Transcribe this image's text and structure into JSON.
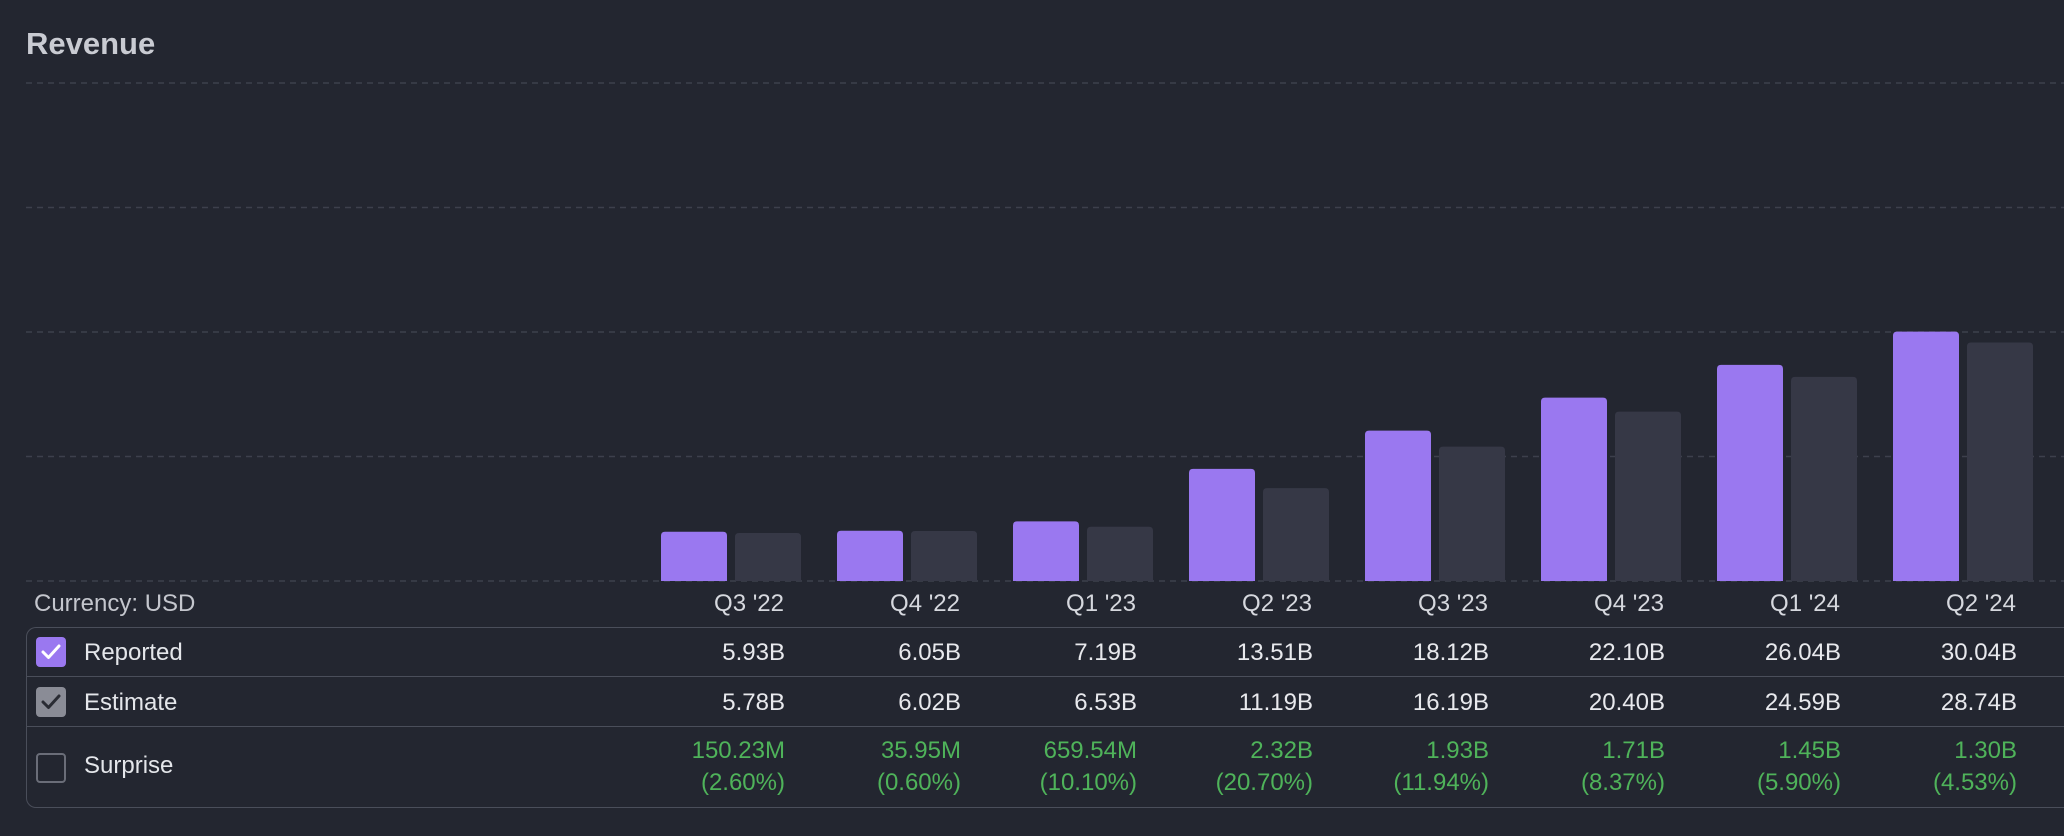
{
  "title": "Revenue",
  "currency_label": "Currency: USD",
  "colors": {
    "reported": "#9a78f0",
    "estimate": "#363846",
    "surprise_text": "#4fb35a"
  },
  "rows": {
    "reported_label": "Reported",
    "estimate_label": "Estimate",
    "surprise_label": "Surprise",
    "reported_checked": true,
    "estimate_checked": true,
    "surprise_checked": false
  },
  "table": {
    "quarters": [
      "Q3 '22",
      "Q4 '22",
      "Q1 '23",
      "Q2 '23",
      "Q3 '23",
      "Q4 '23",
      "Q1 '24",
      "Q2 '24"
    ],
    "reported": [
      "5.93B",
      "6.05B",
      "7.19B",
      "13.51B",
      "18.12B",
      "22.10B",
      "26.04B",
      "30.04B"
    ],
    "estimate": [
      "5.78B",
      "6.02B",
      "6.53B",
      "11.19B",
      "16.19B",
      "20.40B",
      "24.59B",
      "28.74B"
    ],
    "surprise_amount": [
      "150.23M",
      "35.95M",
      "659.54M",
      "2.32B",
      "1.93B",
      "1.71B",
      "1.45B",
      "1.30B"
    ],
    "surprise_pct": [
      "(2.60%)",
      "(0.60%)",
      "(10.10%)",
      "(20.70%)",
      "(11.94%)",
      "(8.37%)",
      "(5.90%)",
      "(4.53%)"
    ]
  },
  "chart_data": {
    "type": "bar",
    "title": "Revenue",
    "categories": [
      "Q3 '22",
      "Q4 '22",
      "Q1 '23",
      "Q2 '23",
      "Q3 '23",
      "Q4 '23",
      "Q1 '24",
      "Q2 '24"
    ],
    "series": [
      {
        "name": "Reported",
        "values": [
          5.93,
          6.05,
          7.19,
          13.51,
          18.12,
          22.1,
          26.04,
          30.04
        ]
      },
      {
        "name": "Estimate",
        "values": [
          5.78,
          6.02,
          6.53,
          11.19,
          16.19,
          20.4,
          24.59,
          28.74
        ]
      }
    ],
    "ylim": [
      0,
      60
    ],
    "grid": true,
    "legend": "table-below"
  }
}
